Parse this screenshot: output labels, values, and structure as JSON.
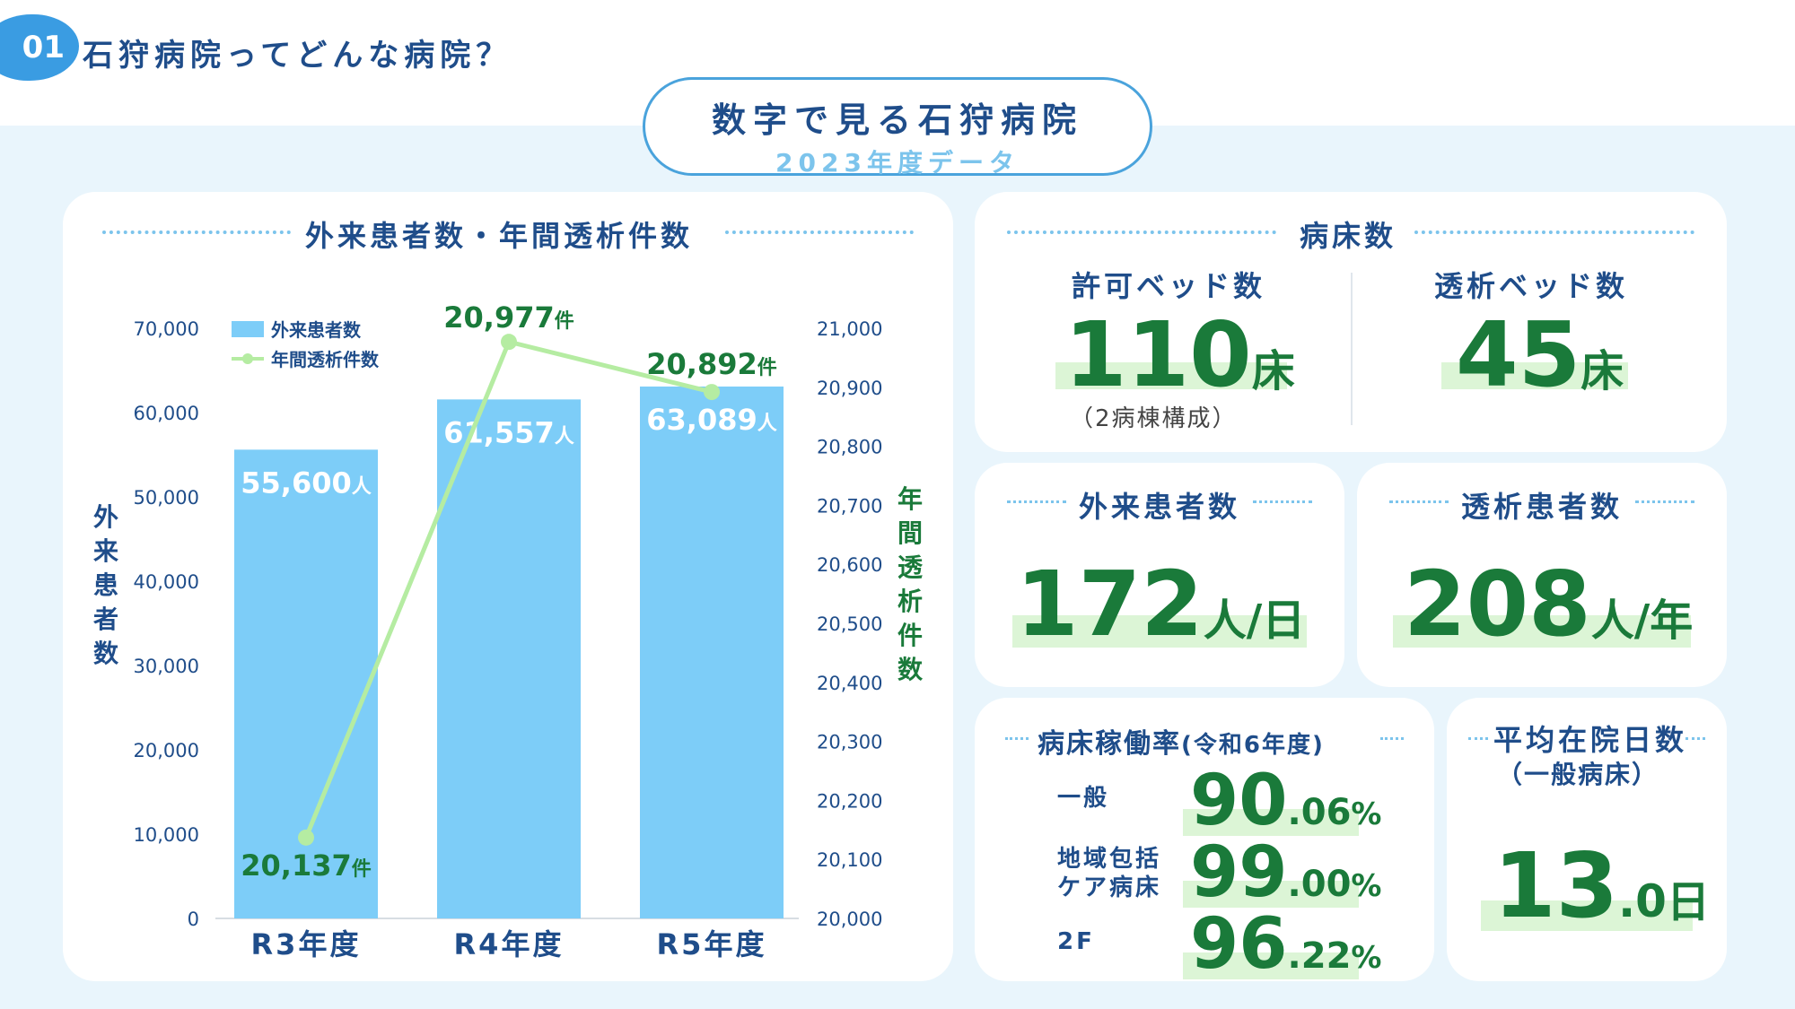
{
  "section": {
    "number": "01",
    "title": "石狩病院ってどんな病院？"
  },
  "main_title": {
    "title": "数字で見る石狩病院",
    "subtitle": "2023年度データ"
  },
  "chart_card": {
    "title": "外来患者数・年間透析件数"
  },
  "chart_data": {
    "type": "bar",
    "categories": [
      "R3年度",
      "R4年度",
      "R5年度"
    ],
    "series": [
      {
        "name": "外来患者数",
        "type": "bar",
        "axis": "left",
        "values": [
          55600,
          61557,
          63089
        ],
        "labels": [
          "55,600",
          "61,557",
          "63,089"
        ],
        "unit": "人",
        "color": "#7dcdf8"
      },
      {
        "name": "年間透析件数",
        "type": "line",
        "axis": "right",
        "values": [
          20137,
          20977,
          20892
        ],
        "labels": [
          "20,137",
          "20,977",
          "20,892"
        ],
        "unit": "件",
        "color": "#b5eca2"
      }
    ],
    "ylabel": "外来患者数",
    "y2label": "年間透析件数",
    "ylim": [
      0,
      70000
    ],
    "y2lim": [
      20000,
      21000
    ],
    "yticks": [
      "0",
      "10,000",
      "20,000",
      "30,000",
      "40,000",
      "50,000",
      "60,000",
      "70,000"
    ],
    "y2ticks": [
      "20,000",
      "20,100",
      "20,200",
      "20,300",
      "20,400",
      "20,500",
      "20,600",
      "20,700",
      "20,800",
      "20,900",
      "21,000"
    ],
    "legend": "top-left"
  },
  "beds": {
    "title": "病床数",
    "licensed_label": "許可ベッド数",
    "licensed_value": "110",
    "licensed_unit": "床",
    "licensed_note": "（2病棟構成）",
    "dialysis_label": "透析ベッド数",
    "dialysis_value": "45",
    "dialysis_unit": "床"
  },
  "outpatients": {
    "title": "外来患者数",
    "value": "172",
    "unit": "人/日"
  },
  "dialysis_patients": {
    "title": "透析患者数",
    "value": "208",
    "unit": "人/年"
  },
  "occupancy": {
    "title": "病床稼働率",
    "title_note": "(令和6年度)",
    "rows": [
      {
        "label": "一般",
        "label2": "",
        "int": "90",
        "dec": ".06",
        "pct": "%"
      },
      {
        "label": "地域包括",
        "label2": "ケア病床",
        "int": "99",
        "dec": ".00",
        "pct": "%"
      },
      {
        "label": "2F",
        "label2": "",
        "int": "96",
        "dec": ".22",
        "pct": "%"
      }
    ]
  },
  "avg_stay": {
    "title": "平均在院日数",
    "note": "（一般病床）",
    "int": "13",
    "dec": ".0",
    "unit": "日"
  },
  "colors": {
    "navy": "#1f4d8a",
    "green": "#1a7a3a",
    "bar": "#7dcdf8",
    "line": "#b5eca2",
    "highlight": "#dcf5d6",
    "background": "#e9f5fc"
  }
}
